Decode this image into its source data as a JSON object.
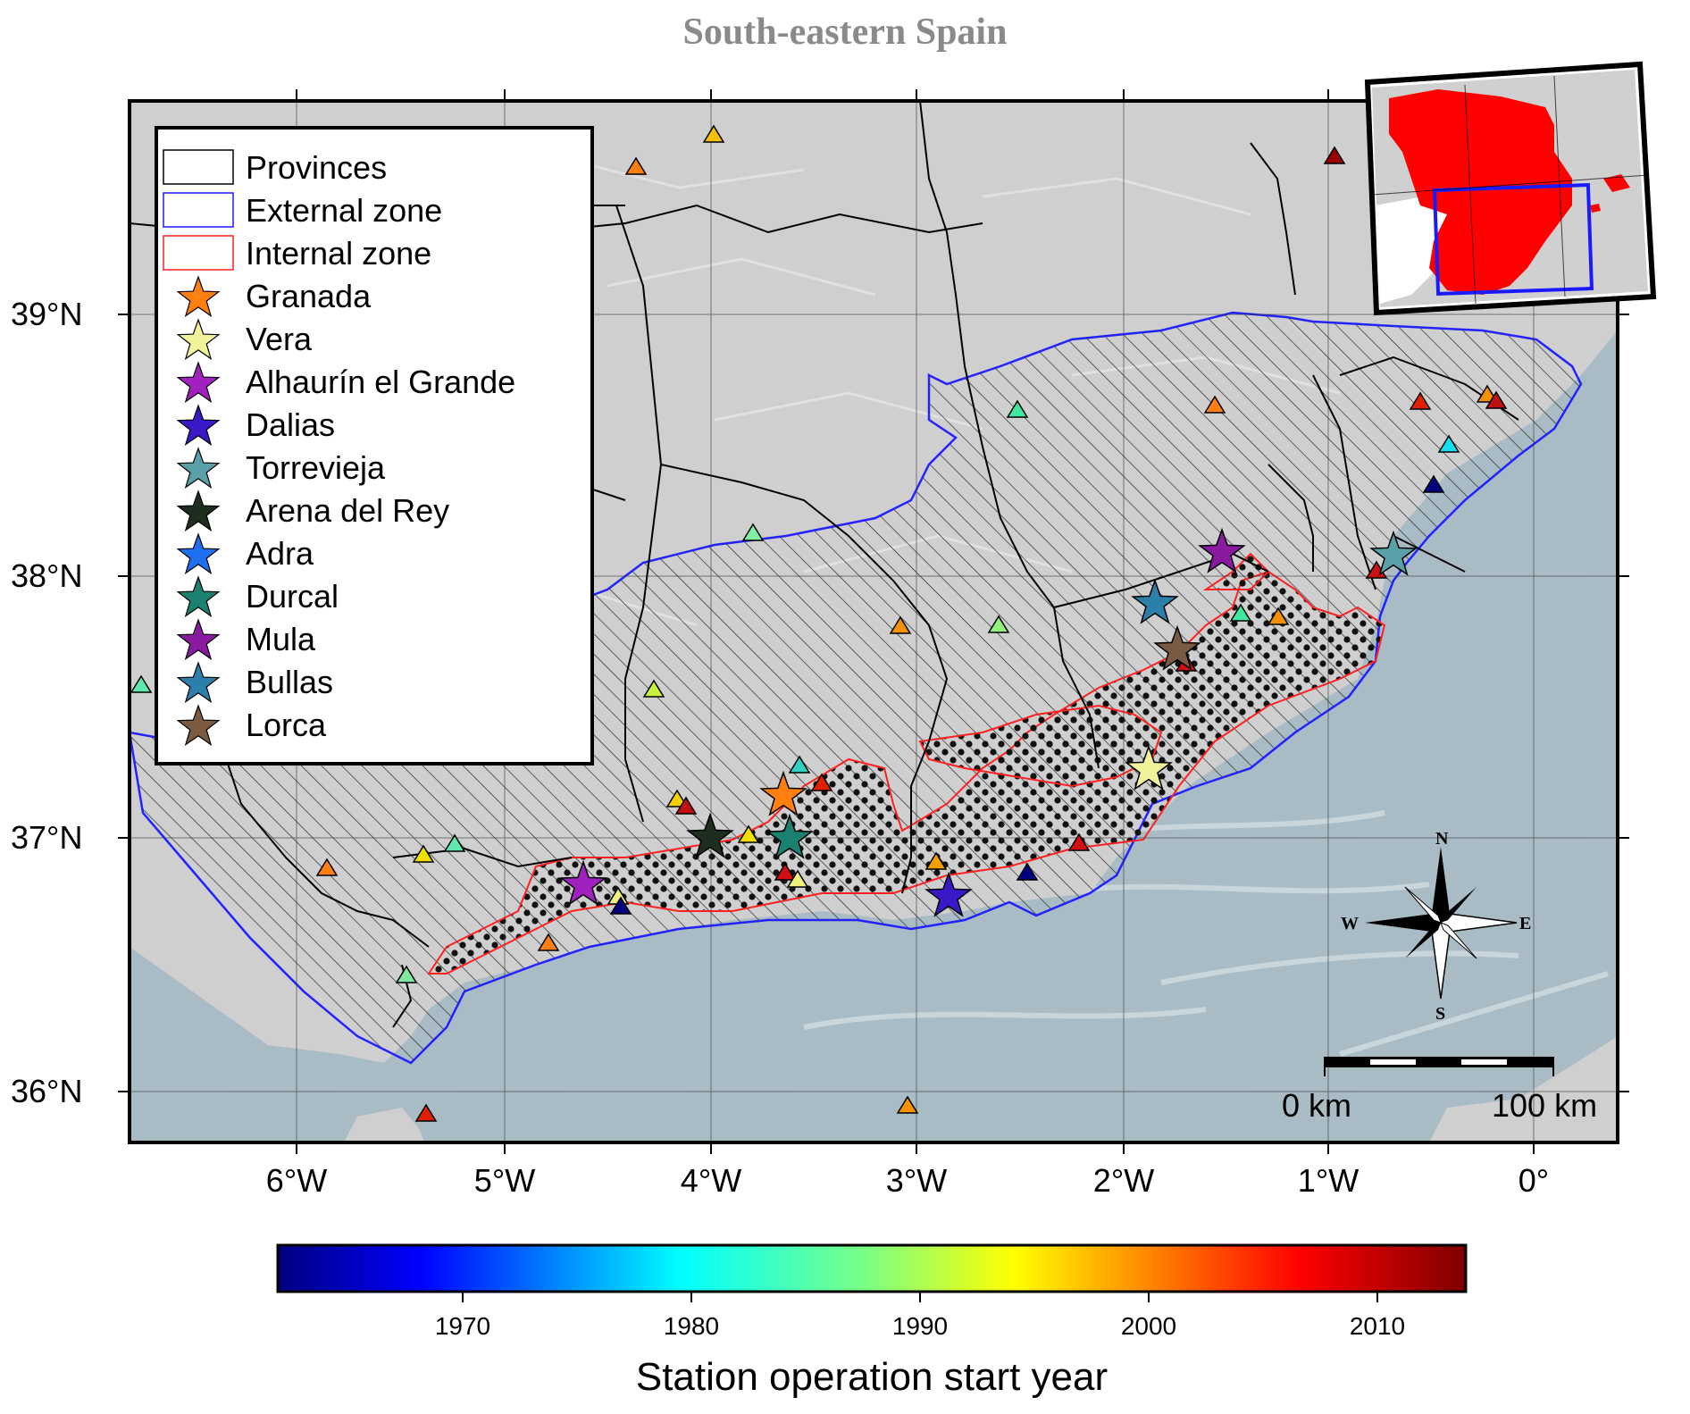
{
  "title": "South-eastern Spain",
  "axes": {
    "lat_labels": [
      "39°N",
      "38°N",
      "37°N",
      "36°N"
    ],
    "lon_labels": [
      "6°W",
      "5°W",
      "4°W",
      "3°W",
      "2°W",
      "1°W",
      "0°"
    ]
  },
  "legend": {
    "zones": [
      {
        "label": "Provinces",
        "color": "#000000"
      },
      {
        "label": "External zone",
        "color": "#1a1aff"
      },
      {
        "label": "Internal zone",
        "color": "#ff2020"
      }
    ],
    "stations": [
      {
        "label": "Granada",
        "color": "#ff7f10",
        "icon": "star-icon"
      },
      {
        "label": "Vera",
        "color": "#f2f29a",
        "icon": "star-icon"
      },
      {
        "label": "Alhaurín el Grande",
        "color": "#a020c0",
        "icon": "star-icon"
      },
      {
        "label": "Dalias",
        "color": "#3a18c8",
        "icon": "star-icon"
      },
      {
        "label": "Torrevieja",
        "color": "#5aa0a8",
        "icon": "star-icon"
      },
      {
        "label": "Arena del Rey",
        "color": "#1e2e1e",
        "icon": "star-icon"
      },
      {
        "label": "Adra",
        "color": "#1e70f0",
        "icon": "star-icon"
      },
      {
        "label": "Durcal",
        "color": "#1a8070",
        "icon": "star-icon"
      },
      {
        "label": "Mula",
        "color": "#8a1aa0",
        "icon": "star-icon"
      },
      {
        "label": "Bullas",
        "color": "#2a80a8",
        "icon": "star-icon"
      },
      {
        "label": "Lorca",
        "color": "#7a5a40",
        "icon": "star-icon"
      }
    ]
  },
  "colorbar": {
    "ticks": [
      "1970",
      "1980",
      "1990",
      "2000",
      "2010"
    ],
    "title": "Station operation start year"
  },
  "scale_bar": {
    "left_label": "0 km",
    "right_label": "100 km"
  },
  "compass": {
    "n": "N",
    "s": "S",
    "e": "E",
    "w": "W"
  },
  "colors": {
    "sea": "#a9bcc5",
    "land": "#c8c8c8",
    "inset_spain": "#ff0000",
    "inset_box": "#1a1aff"
  }
}
